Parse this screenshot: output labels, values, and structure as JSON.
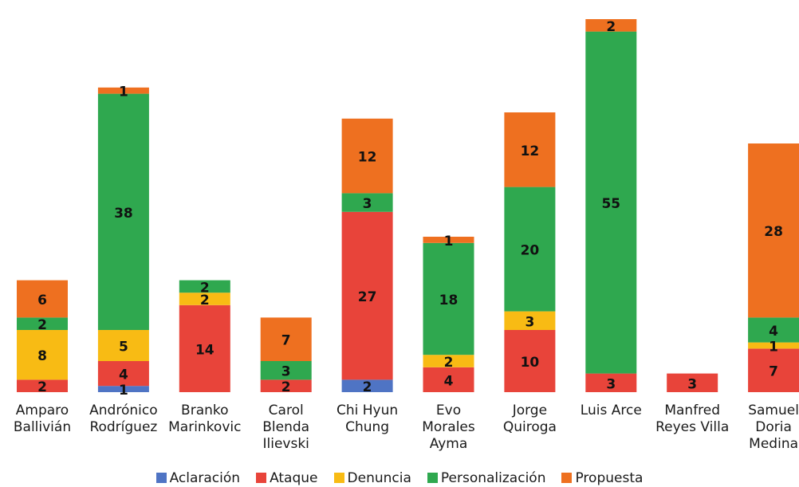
{
  "chart_data": {
    "type": "bar",
    "stacked": true,
    "title": "",
    "xlabel": "",
    "ylabel": "",
    "categories": [
      "Amparo\nBallivián",
      "Andrónico\nRodríguez",
      "Branko\nMarinkovic",
      "Carol\nBlenda\nIlievski",
      "Chi Hyun\nChung",
      "Evo\nMorales\nAyma",
      "Jorge\nQuiroga",
      "Luis Arce",
      "Manfred\nReyes Villa",
      "Samuel\nDoria\nMedina"
    ],
    "series": [
      {
        "name": "Aclaración",
        "color": "#4f74c4",
        "values": [
          0,
          1,
          0,
          0,
          2,
          0,
          0,
          0,
          0,
          0
        ]
      },
      {
        "name": "Ataque",
        "color": "#e8443a",
        "values": [
          2,
          4,
          14,
          2,
          27,
          4,
          10,
          3,
          3,
          7
        ]
      },
      {
        "name": "Denuncia",
        "color": "#f8bb14",
        "values": [
          8,
          5,
          2,
          0,
          0,
          2,
          3,
          0,
          0,
          1
        ]
      },
      {
        "name": "Personalización",
        "color": "#2fa84f",
        "values": [
          2,
          38,
          2,
          3,
          3,
          18,
          20,
          55,
          0,
          4
        ]
      },
      {
        "name": "Propuesta",
        "color": "#ee7020",
        "values": [
          6,
          1,
          0,
          7,
          12,
          1,
          12,
          2,
          0,
          28
        ]
      }
    ],
    "ylim": [
      0,
      60
    ],
    "grid": false,
    "legend_position": "bottom"
  }
}
